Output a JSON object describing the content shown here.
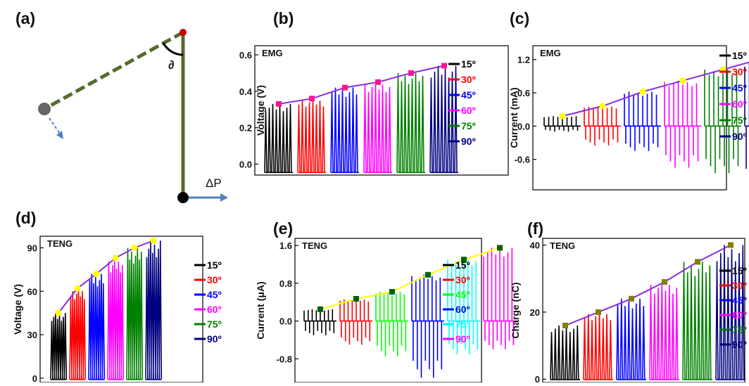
{
  "schematic": {
    "label": "(a)",
    "angle_symbol": "∂",
    "force_label": "ΔP"
  },
  "legend_colors": [
    "#000000",
    "#ff0000",
    "#0000ff",
    "#ff00ff",
    "#008000",
    "#000080"
  ],
  "legend_colors_e": [
    "#000000",
    "#ff0000",
    "#00ff00",
    "#0000ff",
    "#00ffff",
    "#ff00ff"
  ],
  "chart_data": [
    {
      "id": "b",
      "label": "(b)",
      "type": "line",
      "title": "EMG",
      "ylabel": "Voltage (V)",
      "ylim": [
        -0.06,
        0.65
      ],
      "yticks": [
        "0.0",
        "0.2",
        "0.4",
        "0.6"
      ],
      "ytick_values": [
        0,
        0.2,
        0.4,
        0.6
      ],
      "legend": [
        "15º",
        "30º",
        "45º",
        "60º",
        "75º",
        "90º"
      ],
      "series": [
        {
          "values": [
            0.33,
            0.36,
            0.42,
            0.45,
            0.5,
            0.54
          ]
        }
      ],
      "marker_color": "#ff1493",
      "line_color": "#8a2be2"
    },
    {
      "id": "c",
      "label": "(c)",
      "type": "line",
      "title": "EMG",
      "ylabel": "Current (mA)",
      "ylim": [
        -1.15,
        1.45
      ],
      "yticks": [
        "1.2",
        "0.6",
        "0.0",
        "-0.6"
      ],
      "ytick_values": [
        1.2,
        0.6,
        0,
        -0.6
      ],
      "legend": [
        "15º",
        "30º",
        "45º",
        "60º",
        "75º",
        "90º"
      ],
      "series": [
        {
          "values": [
            0.18,
            0.36,
            0.62,
            0.82,
            1.02,
            1.22
          ]
        }
      ],
      "burst_min": [
        -0.1,
        -0.35,
        -0.45,
        -0.75,
        -0.85,
        -1.1
      ],
      "marker_color": "#ffff00",
      "line_color": "#8a2be2"
    },
    {
      "id": "d",
      "label": "(d)",
      "type": "line",
      "title": "TENG",
      "ylabel": "Voltage (V)",
      "ylim": [
        -3,
        98
      ],
      "yticks": [
        "0",
        "30",
        "60",
        "90"
      ],
      "ytick_values": [
        0,
        30,
        60,
        90
      ],
      "legend": [
        "15º",
        "30º",
        "45º",
        "60º",
        "75º",
        "90º"
      ],
      "series": [
        {
          "values": [
            45,
            62,
            72,
            83,
            90,
            95
          ]
        }
      ],
      "marker_color": "#ffff00",
      "line_color": "#8a2be2"
    },
    {
      "id": "e",
      "label": "(e)",
      "type": "line",
      "title": "TENG",
      "ylabel": "Current (μA)",
      "ylim": [
        -1.3,
        1.75
      ],
      "yticks": [
        "1.6",
        "0.8",
        "0.0",
        "-0.8"
      ],
      "ytick_values": [
        1.6,
        0.8,
        0,
        -0.8
      ],
      "legend": [
        "15º",
        "30º",
        "45º",
        "60º",
        "75º",
        "90º"
      ],
      "series": [
        {
          "values": [
            0.25,
            0.47,
            0.62,
            0.98,
            1.3,
            1.55
          ]
        }
      ],
      "burst_min": [
        -0.3,
        -0.5,
        -0.75,
        -1.2,
        -0.7,
        -0.6
      ],
      "marker_color": "#006400",
      "line_color": "#ffff00"
    },
    {
      "id": "f",
      "label": "(f)",
      "type": "line",
      "title": "TENG",
      "ylabel": "Charge (nC)",
      "ylim": [
        -1,
        42
      ],
      "yticks": [
        "0",
        "20",
        "40"
      ],
      "ytick_values": [
        0,
        20,
        40
      ],
      "legend": [
        "15º",
        "30º",
        "45º",
        "60º",
        "75º",
        "90º"
      ],
      "series": [
        {
          "values": [
            16,
            20,
            24,
            29,
            35,
            40
          ]
        }
      ],
      "marker_color": "#808000",
      "line_color": "#8a2be2"
    }
  ]
}
